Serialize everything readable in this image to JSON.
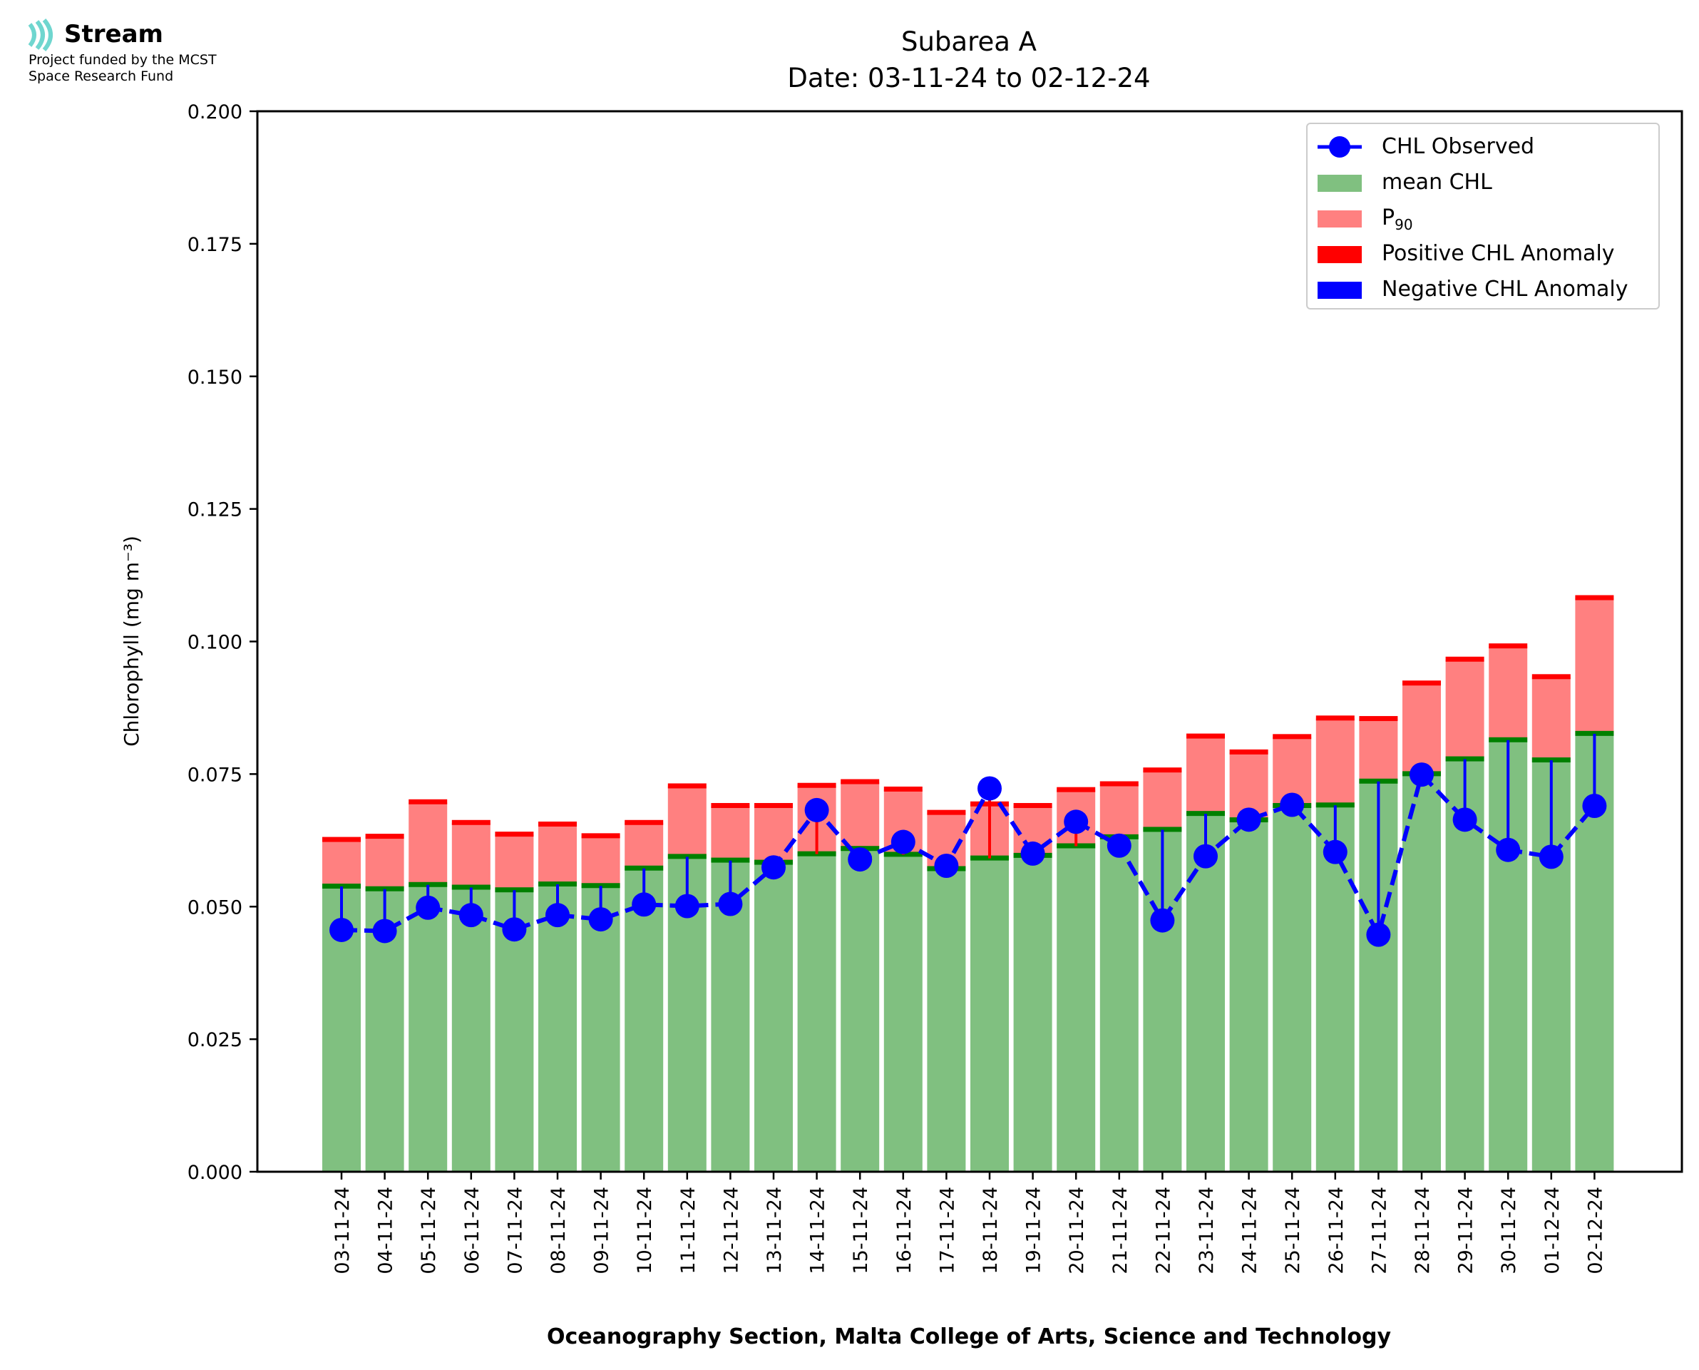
{
  "logo": {
    "name": "Stream",
    "line1": "Project funded by the MCST",
    "line2": "Space Research Fund"
  },
  "chart_data": {
    "type": "bar",
    "title": "Subarea A",
    "subtitle": "Date: 03-11-24 to 02-12-24",
    "xlabel": "Oceanography Section, Malta College of Arts, Science and Technology",
    "ylabel": "Chlorophyll (mg m⁻³)",
    "ylim": [
      0,
      0.2
    ],
    "yticks": [
      "0.000",
      "0.025",
      "0.050",
      "0.075",
      "0.100",
      "0.125",
      "0.150",
      "0.175",
      "0.200"
    ],
    "categories": [
      "03-11-24",
      "04-11-24",
      "05-11-24",
      "06-11-24",
      "07-11-24",
      "08-11-24",
      "09-11-24",
      "10-11-24",
      "11-11-24",
      "12-11-24",
      "13-11-24",
      "14-11-24",
      "15-11-24",
      "16-11-24",
      "17-11-24",
      "18-11-24",
      "19-11-24",
      "20-11-24",
      "21-11-24",
      "22-11-24",
      "23-11-24",
      "24-11-24",
      "25-11-24",
      "26-11-24",
      "27-11-24",
      "28-11-24",
      "29-11-24",
      "30-11-24",
      "01-12-24",
      "02-12-24"
    ],
    "series": [
      {
        "name": "CHL Observed",
        "style": "dashed-line-markers",
        "color": "#0000ff",
        "values": [
          0.0456,
          0.0454,
          0.0498,
          0.0484,
          0.0457,
          0.0484,
          0.0476,
          0.0504,
          0.0501,
          0.0505,
          0.0574,
          0.0682,
          0.0589,
          0.0622,
          0.0577,
          0.0723,
          0.06,
          0.066,
          0.0615,
          0.0474,
          0.0595,
          0.0664,
          0.0692,
          0.0603,
          0.0447,
          0.0749,
          0.0664,
          0.0607,
          0.0594,
          0.069
        ]
      },
      {
        "name": "mean CHL",
        "style": "bar",
        "color": "#80c080",
        "values": [
          0.0538,
          0.0533,
          0.0541,
          0.0536,
          0.0531,
          0.0542,
          0.0539,
          0.0572,
          0.0594,
          0.0587,
          0.0583,
          0.0599,
          0.0609,
          0.0598,
          0.0571,
          0.0591,
          0.0596,
          0.0614,
          0.0631,
          0.0645,
          0.0675,
          0.0663,
          0.069,
          0.0691,
          0.0736,
          0.075,
          0.0778,
          0.0814,
          0.0776,
          0.0826
        ]
      },
      {
        "name": "P90",
        "style": "bar",
        "color": "#ff8080",
        "values": [
          0.0626,
          0.0632,
          0.0697,
          0.0658,
          0.0636,
          0.0655,
          0.0633,
          0.0658,
          0.0727,
          0.069,
          0.069,
          0.0728,
          0.0735,
          0.0721,
          0.0677,
          0.0693,
          0.069,
          0.072,
          0.0731,
          0.0757,
          0.0821,
          0.0791,
          0.082,
          0.0855,
          0.0854,
          0.0921,
          0.0966,
          0.0991,
          0.0933,
          0.1082
        ]
      }
    ],
    "legend": {
      "position": "top-right",
      "entries": [
        {
          "label": "CHL Observed",
          "color": "#0000ff"
        },
        {
          "label": "mean CHL",
          "color": "#80c080"
        },
        {
          "label_main": "P",
          "label_sub": "90",
          "color": "#ff8080"
        },
        {
          "label": "Positive CHL Anomaly",
          "color": "#ff0000"
        },
        {
          "label": "Negative CHL Anomaly",
          "color": "#0000ff"
        }
      ]
    },
    "grid": false
  }
}
